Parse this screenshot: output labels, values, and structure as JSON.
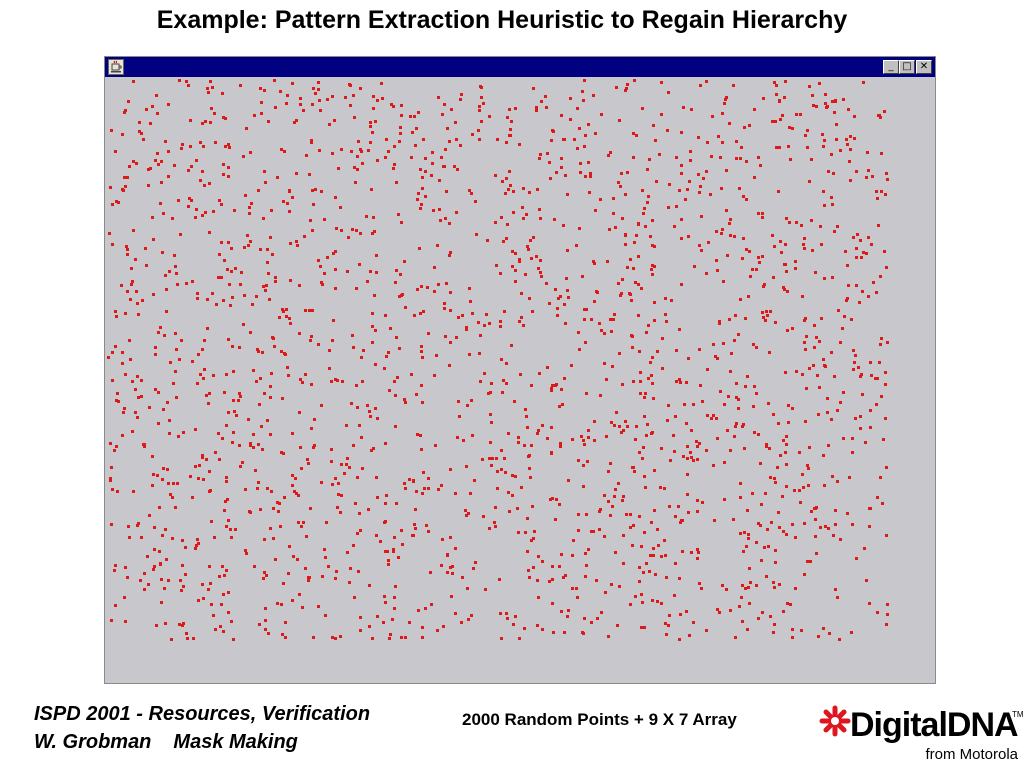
{
  "slide": {
    "title": "Example: Pattern Extraction Heuristic to Regain Hierarchy"
  },
  "window": {
    "titlebar_color": "#000080",
    "icon": "java-app-icon",
    "controls": {
      "minimize_glyph": "_",
      "maximize_glyph": "□",
      "close_glyph": "✕"
    },
    "canvas_bg": "#c8c8cc",
    "point_color": "#dd1a1a"
  },
  "footer": {
    "line1": "ISPD 2001 - Resources, Verification",
    "author": "W. Grobman",
    "topic": "Mask Making",
    "caption": "2000 Random Points + 9 X 7 Array"
  },
  "logo": {
    "word": "DigitalDNA",
    "tm": "TM",
    "sub": "from Motorola",
    "star_color": "#e0161e"
  }
}
